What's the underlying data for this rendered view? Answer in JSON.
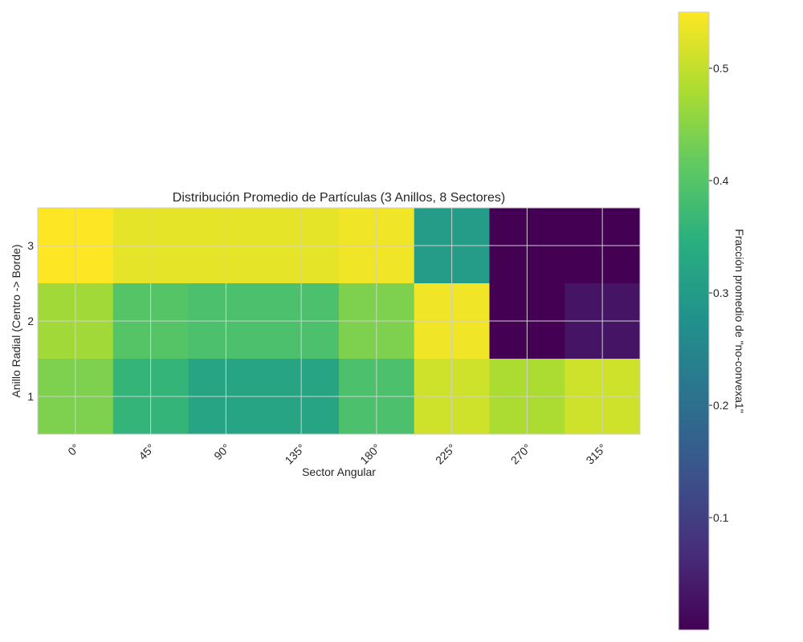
{
  "chart_data": {
    "type": "heatmap",
    "title": "Distribución Promedio de Partículas (3 Anillos, 8 Sectores)",
    "xlabel": "Sector Angular",
    "ylabel": "Anillo Radial (Centro -> Borde)",
    "x_categories": [
      "0°",
      "45°",
      "90°",
      "135°",
      "180°",
      "225°",
      "270°",
      "315°"
    ],
    "y_categories": [
      "3",
      "2",
      "1"
    ],
    "values": [
      [
        0.55,
        0.53,
        0.53,
        0.53,
        0.54,
        0.3,
        0.0,
        0.0
      ],
      [
        0.47,
        0.4,
        0.39,
        0.39,
        0.44,
        0.54,
        0.0,
        0.03
      ],
      [
        0.44,
        0.36,
        0.32,
        0.32,
        0.39,
        0.51,
        0.48,
        0.51
      ]
    ],
    "colorbar": {
      "label": "Fracción promedio de \"no-convexa1\"",
      "ticks": [
        "0.1",
        "0.2",
        "0.3",
        "0.4",
        "0.5"
      ],
      "tick_values": [
        0.1,
        0.2,
        0.3,
        0.4,
        0.5
      ],
      "min": 0.0,
      "max": 0.55,
      "colormap": "viridis"
    },
    "grid": true
  }
}
